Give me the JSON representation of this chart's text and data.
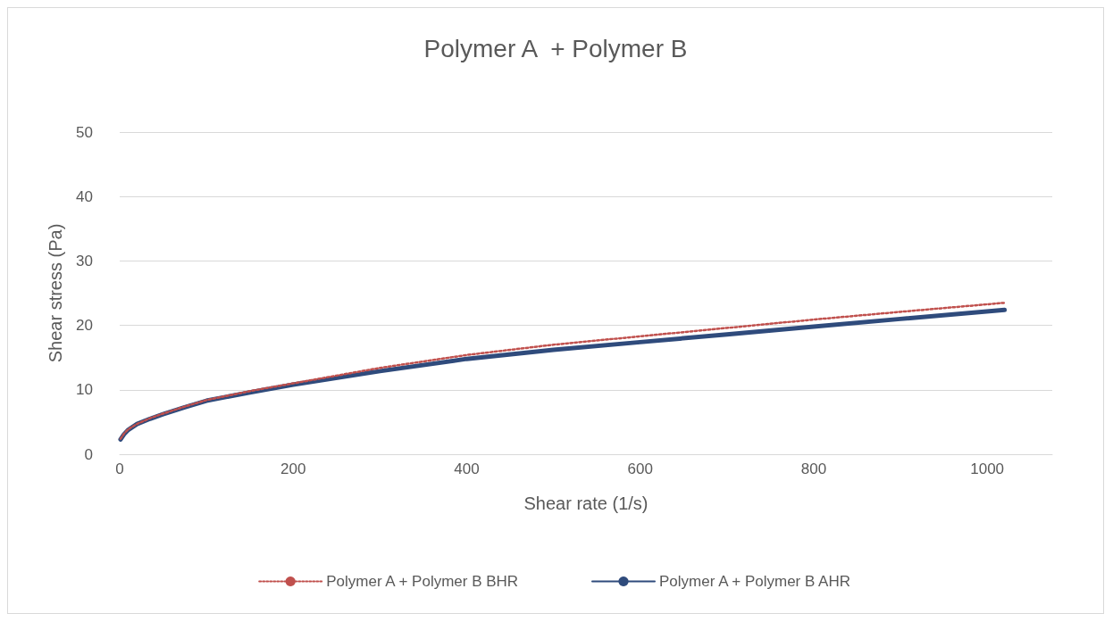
{
  "chart_data": {
    "type": "line",
    "title": "Polymer A  + Polymer B",
    "xlabel": "Shear rate (1/s)",
    "ylabel": "Shear stress (Pa)",
    "xlim": [
      0,
      1075
    ],
    "xticks": [
      0,
      200,
      400,
      600,
      800,
      1000
    ],
    "ylim": [
      0,
      50
    ],
    "yticks": [
      0,
      10,
      20,
      30,
      40,
      50
    ],
    "grid": "y",
    "legend": "bottom",
    "marker": "none",
    "series": [
      {
        "name": "Polymer A + Polymer B BHR",
        "color": "#c0504d",
        "line_style": "dotted",
        "x": [
          1,
          5,
          10,
          20,
          35,
          50,
          75,
          100,
          150,
          200,
          300,
          400,
          500,
          600,
          700,
          800,
          900,
          1020
        ],
        "values": [
          2.4,
          3.2,
          3.9,
          4.7,
          5.6,
          6.3,
          7.4,
          8.4,
          9.8,
          11.0,
          13.4,
          15.4,
          17.0,
          18.3,
          19.6,
          20.9,
          22.1,
          23.5
        ]
      },
      {
        "name": "Polymer A + Polymer B AHR",
        "color": "#2f4b7c",
        "line_style": "solid",
        "x": [
          1,
          5,
          10,
          20,
          35,
          50,
          75,
          100,
          150,
          200,
          300,
          400,
          500,
          600,
          700,
          800,
          900,
          1020
        ],
        "values": [
          2.3,
          3.1,
          3.8,
          4.7,
          5.5,
          6.2,
          7.3,
          8.3,
          9.6,
          10.8,
          12.9,
          14.8,
          16.2,
          17.4,
          18.6,
          19.8,
          21.0,
          22.4
        ]
      }
    ]
  }
}
